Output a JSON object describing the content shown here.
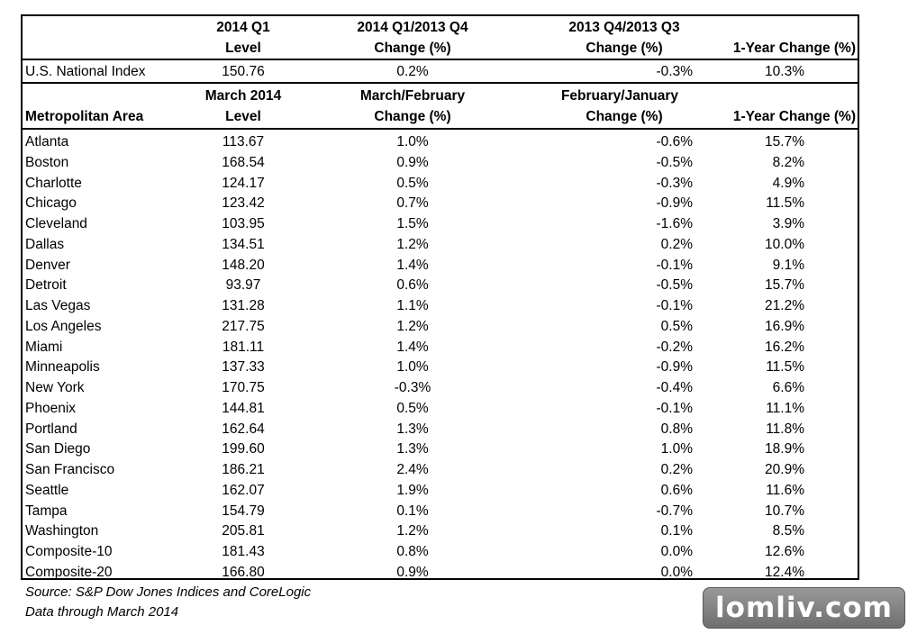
{
  "national": {
    "headers": {
      "c1": [
        "2014 Q1",
        "Level"
      ],
      "c2": [
        "2014 Q1/2013 Q4",
        "Change (%)"
      ],
      "c3": [
        "2013 Q4/2013 Q3",
        "Change (%)"
      ],
      "c4": [
        "",
        "1-Year Change (%)"
      ]
    },
    "row": [
      "U.S. National Index",
      "150.76",
      "0.2%",
      "-0.3%",
      "10.3%"
    ]
  },
  "metro": {
    "headers": {
      "c0": "Metropolitan Area",
      "c1": [
        "March 2014",
        "Level"
      ],
      "c2": [
        "March/February",
        "Change (%)"
      ],
      "c3": [
        "February/January",
        "Change (%)"
      ],
      "c4": "1-Year Change (%)"
    },
    "rows": [
      [
        "Atlanta",
        "113.67",
        "1.0%",
        "-0.6%",
        "15.7%"
      ],
      [
        "Boston",
        "168.54",
        "0.9%",
        "-0.5%",
        "8.2%"
      ],
      [
        "Charlotte",
        "124.17",
        "0.5%",
        "-0.3%",
        "4.9%"
      ],
      [
        "Chicago",
        "123.42",
        "0.7%",
        "-0.9%",
        "11.5%"
      ],
      [
        "Cleveland",
        "103.95",
        "1.5%",
        "-1.6%",
        "3.9%"
      ],
      [
        "Dallas",
        "134.51",
        "1.2%",
        "0.2%",
        "10.0%"
      ],
      [
        "Denver",
        "148.20",
        "1.4%",
        "-0.1%",
        "9.1%"
      ],
      [
        "Detroit",
        "93.97",
        "0.6%",
        "-0.5%",
        "15.7%"
      ],
      [
        "Las Vegas",
        "131.28",
        "1.1%",
        "-0.1%",
        "21.2%"
      ],
      [
        "Los Angeles",
        "217.75",
        "1.2%",
        "0.5%",
        "16.9%"
      ],
      [
        "Miami",
        "181.11",
        "1.4%",
        "-0.2%",
        "16.2%"
      ],
      [
        "Minneapolis",
        "137.33",
        "1.0%",
        "-0.9%",
        "11.5%"
      ],
      [
        "New York",
        "170.75",
        "-0.3%",
        "-0.4%",
        "6.6%"
      ],
      [
        "Phoenix",
        "144.81",
        "0.5%",
        "-0.1%",
        "11.1%"
      ],
      [
        "Portland",
        "162.64",
        "1.3%",
        "0.8%",
        "11.8%"
      ],
      [
        "San Diego",
        "199.60",
        "1.3%",
        "1.0%",
        "18.9%"
      ],
      [
        "San Francisco",
        "186.21",
        "2.4%",
        "0.2%",
        "20.9%"
      ],
      [
        "Seattle",
        "162.07",
        "1.9%",
        "0.6%",
        "11.6%"
      ],
      [
        "Tampa",
        "154.79",
        "0.1%",
        "-0.7%",
        "10.7%"
      ],
      [
        "Washington",
        "205.81",
        "1.2%",
        "0.1%",
        "8.5%"
      ],
      [
        "Composite-10",
        "181.43",
        "0.8%",
        "0.0%",
        "12.6%"
      ],
      [
        "Composite-20",
        "166.80",
        "0.9%",
        "0.0%",
        "12.4%"
      ]
    ]
  },
  "footer": {
    "source": "Source: S&P Dow Jones Indices and CoreLogic",
    "through": "Data through March 2014"
  },
  "watermark": "lomliv.com"
}
